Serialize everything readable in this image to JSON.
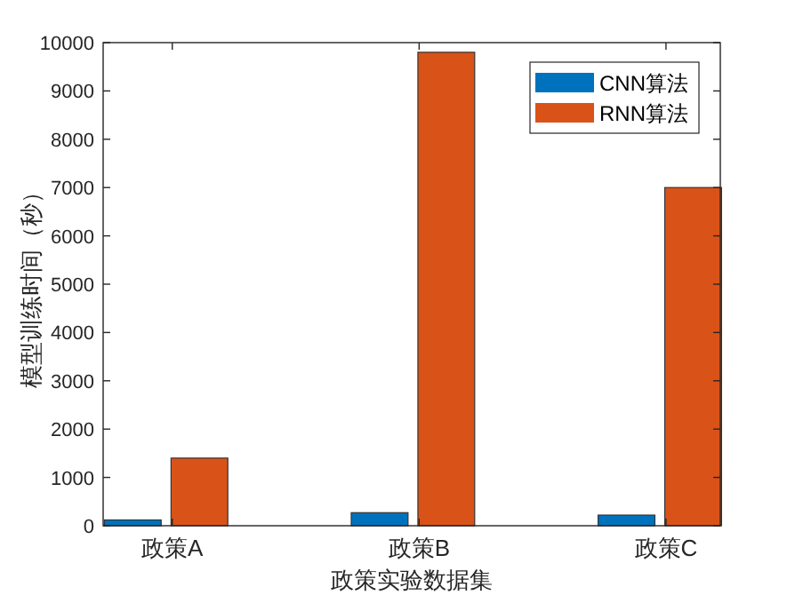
{
  "chart_data": {
    "type": "bar",
    "xlabel": "政策实验数据集",
    "ylabel": "模型训练时间（秒）",
    "categories": [
      "政策A",
      "政策B",
      "政策C"
    ],
    "series": [
      {
        "name": "CNN算法",
        "color": "#0072bd",
        "values": [
          120,
          270,
          220
        ]
      },
      {
        "name": "RNN算法",
        "color": "#d95319",
        "values": [
          1400,
          9800,
          7000
        ]
      }
    ],
    "ylim": [
      0,
      10000
    ],
    "yticks": [
      0,
      1000,
      2000,
      3000,
      4000,
      5000,
      6000,
      7000,
      8000,
      9000,
      10000
    ],
    "legend": "top right",
    "grid": false
  }
}
